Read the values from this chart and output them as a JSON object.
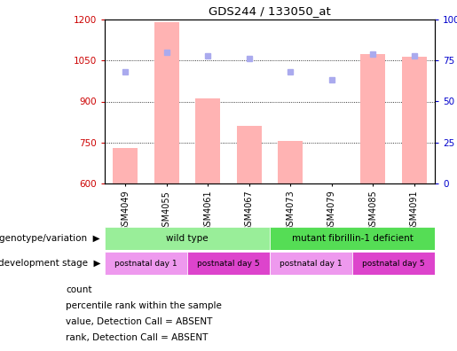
{
  "title": "GDS244 / 133050_at",
  "samples": [
    "GSM4049",
    "GSM4055",
    "GSM4061",
    "GSM4067",
    "GSM4073",
    "GSM4079",
    "GSM4085",
    "GSM4091"
  ],
  "bar_values": [
    730,
    1190,
    910,
    810,
    755,
    601,
    1075,
    1065
  ],
  "rank_dots": [
    68,
    80,
    78,
    76,
    68,
    63,
    79,
    78
  ],
  "absent_bars": [
    true,
    true,
    true,
    true,
    true,
    true,
    true,
    true
  ],
  "absent_ranks": [
    true,
    true,
    true,
    true,
    true,
    true,
    true,
    true
  ],
  "ylim_left": [
    600,
    1200
  ],
  "ylim_right": [
    0,
    100
  ],
  "yticks_left": [
    600,
    750,
    900,
    1050,
    1200
  ],
  "yticks_right": [
    0,
    25,
    50,
    75,
    100
  ],
  "bar_color_absent": "#ffb3b3",
  "dot_color_absent": "#aaaaee",
  "bar_color_present": "#cc0000",
  "dot_color_present": "#000099",
  "left_axis_color": "#cc0000",
  "right_axis_color": "#0000cc",
  "genotype_groups": [
    {
      "label": "wild type",
      "start": 0,
      "end": 4,
      "color": "#99ee99"
    },
    {
      "label": "mutant fibrillin-1 deficient",
      "start": 4,
      "end": 8,
      "color": "#55dd55"
    }
  ],
  "dev_groups": [
    {
      "label": "postnatal day 1",
      "start": 0,
      "end": 2,
      "color": "#ee99ee"
    },
    {
      "label": "postnatal day 5",
      "start": 2,
      "end": 4,
      "color": "#dd44cc"
    },
    {
      "label": "postnatal day 1",
      "start": 4,
      "end": 6,
      "color": "#ee99ee"
    },
    {
      "label": "postnatal day 5",
      "start": 6,
      "end": 8,
      "color": "#dd44cc"
    }
  ],
  "legend_items": [
    {
      "label": "count",
      "color": "#cc0000"
    },
    {
      "label": "percentile rank within the sample",
      "color": "#000099"
    },
    {
      "label": "value, Detection Call = ABSENT",
      "color": "#ffb3b3"
    },
    {
      "label": "rank, Detection Call = ABSENT",
      "color": "#aaaaee"
    }
  ],
  "row_label_genotype": "genotype/variation",
  "row_label_dev": "development stage",
  "bg_color": "#ffffff",
  "bar_width": 0.6
}
